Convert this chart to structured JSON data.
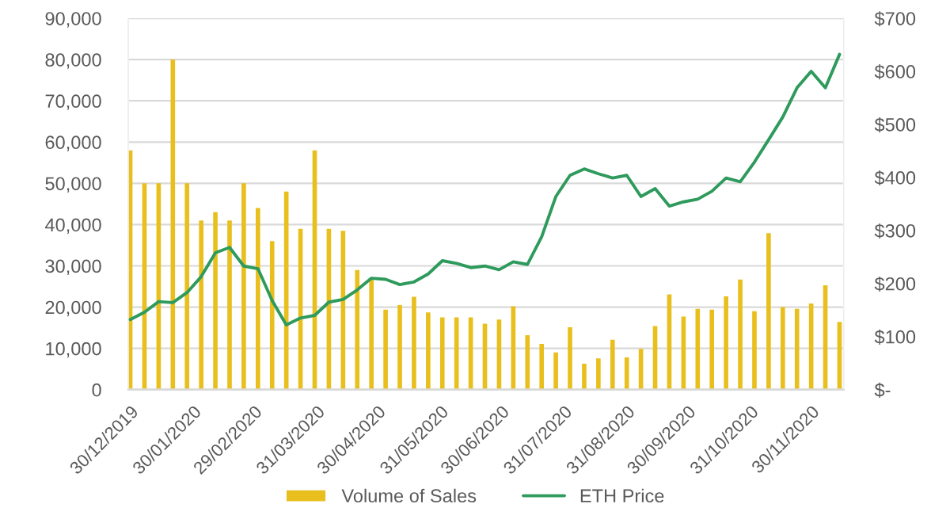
{
  "chart_data": {
    "type": "bar",
    "x": [
      "2019-12-30",
      "2020-01-06",
      "2020-01-13",
      "2020-01-20",
      "2020-01-27",
      "2020-02-03",
      "2020-02-10",
      "2020-02-17",
      "2020-02-24",
      "2020-03-02",
      "2020-03-09",
      "2020-03-16",
      "2020-03-23",
      "2020-03-30",
      "2020-04-06",
      "2020-04-13",
      "2020-04-20",
      "2020-04-27",
      "2020-05-04",
      "2020-05-11",
      "2020-05-18",
      "2020-05-25",
      "2020-06-01",
      "2020-06-08",
      "2020-06-15",
      "2020-06-22",
      "2020-06-29",
      "2020-07-06",
      "2020-07-13",
      "2020-07-20",
      "2020-07-27",
      "2020-08-03",
      "2020-08-10",
      "2020-08-17",
      "2020-08-24",
      "2020-08-31",
      "2020-09-07",
      "2020-09-14",
      "2020-09-21",
      "2020-09-28",
      "2020-10-05",
      "2020-10-12",
      "2020-10-19",
      "2020-10-26",
      "2020-11-02",
      "2020-11-09",
      "2020-11-16",
      "2020-11-23",
      "2020-11-30",
      "2020-12-07",
      "2020-12-14"
    ],
    "series": [
      {
        "name": "Volume of Sales",
        "color": "#e8bf1c",
        "values": [
          58000,
          50000,
          50000,
          80000,
          50000,
          41000,
          43000,
          41000,
          50000,
          44000,
          36000,
          48000,
          39000,
          58000,
          39000,
          38500,
          29000,
          27000,
          19400,
          20500,
          22500,
          18700,
          17500,
          17500,
          17500,
          16000,
          17000,
          20200,
          13200,
          11100,
          9000,
          15100,
          6300,
          7600,
          12100,
          7800,
          9900,
          15400,
          23100,
          17700,
          19600,
          19400,
          22600,
          26700,
          19000,
          37900,
          20000,
          19600,
          20900,
          25300,
          16400
        ]
      },
      {
        "name": "ETH Price",
        "type": "line",
        "axis": "y2",
        "color": "#2e9a5c",
        "values": [
          132,
          146,
          166,
          164,
          183,
          213,
          258,
          268,
          233,
          228,
          168,
          122,
          135,
          140,
          165,
          170,
          188,
          210,
          208,
          198,
          203,
          218,
          243,
          238,
          230,
          233,
          226,
          241,
          236,
          288,
          364,
          404,
          416,
          407,
          399,
          404,
          364,
          379,
          346,
          354,
          359,
          374,
          399,
          392,
          429,
          471,
          514,
          569,
          600,
          569,
          632
        ]
      }
    ],
    "xlim": [
      "2019-12-29",
      "2020-12-16"
    ],
    "xticks": [
      {
        "value": "2019-12-30",
        "label": "30/12/2019"
      },
      {
        "value": "2020-01-30",
        "label": "30/01/2020"
      },
      {
        "value": "2020-02-29",
        "label": "29/02/2020"
      },
      {
        "value": "2020-03-31",
        "label": "31/03/2020"
      },
      {
        "value": "2020-04-30",
        "label": "30/04/2020"
      },
      {
        "value": "2020-05-31",
        "label": "31/05/2020"
      },
      {
        "value": "2020-06-30",
        "label": "30/06/2020"
      },
      {
        "value": "2020-07-31",
        "label": "31/07/2020"
      },
      {
        "value": "2020-08-31",
        "label": "31/08/2020"
      },
      {
        "value": "2020-09-30",
        "label": "30/09/2020"
      },
      {
        "value": "2020-10-31",
        "label": "31/10/2020"
      },
      {
        "value": "2020-11-30",
        "label": "30/11/2020"
      }
    ],
    "ylim": [
      0,
      90000
    ],
    "yticks": [
      0,
      {
        "value": 10000,
        "label": "10,000"
      },
      {
        "value": 20000,
        "label": "20,000"
      },
      {
        "value": 30000,
        "label": "30,000"
      },
      {
        "value": 40000,
        "label": "40,000"
      },
      {
        "value": 50000,
        "label": "50,000"
      },
      {
        "value": 60000,
        "label": "60,000"
      },
      {
        "value": 70000,
        "label": "70,000"
      },
      {
        "value": 80000,
        "label": "80,000"
      },
      {
        "value": 90000,
        "label": "90,000"
      }
    ],
    "y2lim": [
      0,
      700
    ],
    "y2ticks": [
      {
        "value": 0,
        "label": "$-"
      },
      {
        "value": 100,
        "label": "$100"
      },
      {
        "value": 200,
        "label": "$200"
      },
      {
        "value": 300,
        "label": "$300"
      },
      {
        "value": 400,
        "label": "$400"
      },
      {
        "value": 500,
        "label": "$500"
      },
      {
        "value": 600,
        "label": "$600"
      },
      {
        "value": 700,
        "label": "$700"
      }
    ],
    "grid": "y",
    "legend": "bottom"
  }
}
